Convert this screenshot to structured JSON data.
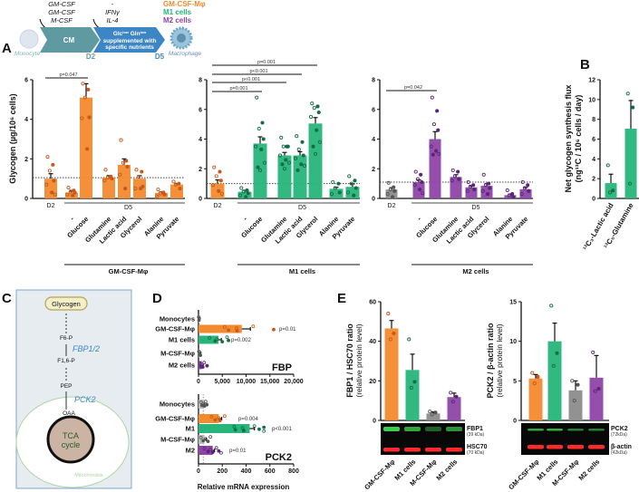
{
  "panels": {
    "a": "A",
    "b": "B",
    "c": "C",
    "d": "D",
    "e": "E"
  },
  "colors": {
    "gm": "#f28a2e",
    "m1": "#26b57a",
    "m2": "#8e44a6",
    "mcsf": "#8c8c8c",
    "gm_pt": "#c9581a",
    "m1_pt": "#166c46",
    "m2_pt": "#5a2677",
    "mcsf_pt": "#555555"
  },
  "schematic": {
    "cytokines_left": [
      "GM-CSF",
      "GM-CSF",
      "M-CSF"
    ],
    "cytokines_right": [
      "-",
      "IFNγ",
      "IL-4"
    ],
    "legend": [
      "GM-CSF-Mφ",
      "M1 cells",
      "M2 cells"
    ],
    "monocyte": "Monocyte",
    "macrophage": "Macrophage",
    "cm": "CM",
    "medium_line1": "Glc",
    "medium_sup1": "low",
    "medium_mid": " Gln",
    "medium_sup2": "low",
    "medium_line2": "supplemented with",
    "medium_line3": "specific nutrients",
    "d2": "D2",
    "d5": "D5"
  },
  "pathway": {
    "glycogen": "Glycogen",
    "f6p": "F6-P",
    "enzyme1": "FBP1/2",
    "f16p": "F1,6-P",
    "pep": "PEP",
    "enzyme2": "PCK2",
    "oaa": "OAA",
    "tca1": "TCA",
    "tca2": "cycle",
    "mito": "Mitochondria"
  },
  "chart_data": [
    {
      "type": "bar",
      "title": "",
      "ylabel": "Glycogen (µg/10⁶ cells)",
      "ylim": [
        0,
        6
      ],
      "yticks": [
        "0",
        "2",
        "4",
        "6"
      ],
      "categories": [
        "D2",
        "-",
        "Glucose",
        "Glutamine",
        "Lactic acid",
        "Glycerol",
        "Alanine",
        "Pyruvate"
      ],
      "day_labels": [
        "D2",
        "D5"
      ],
      "group_label": "GM-CSF-Mφ",
      "values": [
        1.0,
        0.3,
        5.1,
        1.05,
        1.7,
        1.0,
        0.28,
        0.7
      ],
      "errors": [
        0.25,
        0.07,
        0.7,
        0.1,
        0.3,
        0.15,
        0.05,
        0.05
      ],
      "series_color": [
        "gm",
        "gm",
        "gm",
        "gm",
        "gm",
        "gm",
        "gm",
        "gm"
      ],
      "points": [
        [
          2.1,
          1.7,
          1.4,
          0.9,
          0.7,
          0.3,
          0.2
        ],
        [
          0.55,
          0.4,
          0.35,
          0.3,
          0.2,
          0.15
        ],
        [
          5.8,
          5.5,
          5.1,
          4.1,
          4.05,
          2.5
        ],
        [
          1.45,
          1.1,
          1.05,
          1.0,
          0.9
        ],
        [
          2.95,
          1.9,
          1.8,
          1.6,
          1.2,
          0.5
        ],
        [
          1.45,
          1.35,
          1.1,
          0.6,
          0.5,
          0.5
        ],
        [
          0.45,
          0.3,
          0.25,
          0.2,
          0.1
        ],
        [
          0.85,
          0.75,
          0.7,
          0.5
        ]
      ],
      "reference_line": 1.05,
      "significance": [
        {
          "from": 0,
          "to": 2,
          "label": "p=0.047"
        }
      ]
    },
    {
      "type": "bar",
      "title": "",
      "ylim": [
        0,
        8
      ],
      "yticks": [
        "0",
        "2",
        "4",
        "6",
        "8"
      ],
      "categories": [
        "D2",
        "-",
        "Glucose",
        "Glutamine",
        "Lactic acid",
        "Glycerol",
        "Alanine",
        "Pyruvate"
      ],
      "day_labels": [
        "D2",
        "D5"
      ],
      "group_label": "M1 cells",
      "values": [
        1.0,
        0.45,
        3.7,
        2.9,
        2.9,
        5.05,
        0.65,
        0.78
      ],
      "errors": [
        0.25,
        0.1,
        0.45,
        0.2,
        0.25,
        0.4,
        0.1,
        0.2
      ],
      "series_color": [
        "gm",
        "m1",
        "m1",
        "m1",
        "m1",
        "m1",
        "m1",
        "m1"
      ],
      "points": [
        [
          2.1,
          1.8,
          1.5,
          1.2,
          0.9,
          0.5,
          0.3
        ],
        [
          0.7,
          0.55,
          0.45,
          0.35,
          0.2,
          0.1
        ],
        [
          6.8,
          5.1,
          4.7,
          4.0,
          3.5,
          3.3,
          2.4,
          2.1,
          1.9
        ],
        [
          4.1,
          3.5,
          3.5,
          3.5,
          2.9,
          2.6,
          2.4,
          2.3,
          2.0
        ],
        [
          4.2,
          3.8,
          3.3,
          2.9,
          2.7,
          2.3,
          2.2,
          1.9
        ],
        [
          6.4,
          6.2,
          6.1,
          5.8,
          5.5,
          4.6,
          3.8,
          3.5,
          3.0
        ],
        [
          1.1,
          1.0,
          0.7,
          0.4,
          0.3
        ],
        [
          1.5,
          1.2,
          1.0,
          0.7,
          0.4,
          0.2
        ]
      ],
      "reference_line": 1.0,
      "significance": [
        {
          "from": 0,
          "to": 5,
          "label": "p=0.001"
        },
        {
          "from": 0,
          "to": 4,
          "label": "p<0.001"
        },
        {
          "from": 0,
          "to": 3,
          "label": "p<0.001"
        },
        {
          "from": 0,
          "to": 2,
          "label": "p=0.001"
        }
      ]
    },
    {
      "type": "bar",
      "title": "",
      "ylim": [
        0,
        8
      ],
      "yticks": [
        "0",
        "2",
        "4",
        "6",
        "8"
      ],
      "categories": [
        "D2",
        "-",
        "Glucose",
        "Glutamine",
        "Lactic acid",
        "Glycerol",
        "Alanine",
        "Pyruvate"
      ],
      "day_labels": [
        "D2",
        "D5"
      ],
      "group_label": "M2 cells",
      "values": [
        0.6,
        1.1,
        4.0,
        1.45,
        0.75,
        0.85,
        0.22,
        0.62
      ],
      "errors": [
        0.12,
        0.15,
        0.5,
        0.15,
        0.1,
        0.15,
        0.08,
        0.12
      ],
      "series_color": [
        "mcsf",
        "m2",
        "m2",
        "m2",
        "m2",
        "m2",
        "m2",
        "m2"
      ],
      "points": [
        [
          1.05,
          0.75,
          0.6,
          0.5,
          0.3,
          0.1
        ],
        [
          1.8,
          1.6,
          1.3,
          1.1,
          0.9,
          0.6,
          0.35
        ],
        [
          6.8,
          5.9,
          5.0,
          4.6,
          3.5,
          3.2,
          3.0,
          2.95
        ],
        [
          1.9,
          1.8,
          1.5,
          1.3,
          1.2
        ],
        [
          1.1,
          0.9,
          0.8,
          0.6,
          0.5
        ],
        [
          1.6,
          1.0,
          0.9,
          0.7,
          0.5,
          0.3
        ],
        [
          0.55,
          0.3,
          0.2,
          0.1
        ],
        [
          1.1,
          0.9,
          0.7,
          0.5,
          0.3
        ]
      ],
      "reference_line": 1.1,
      "significance": [
        {
          "from": 0,
          "to": 2,
          "label": "p=0.042"
        }
      ]
    },
    {
      "type": "bar",
      "title": "",
      "ylabel": "Net glycogen synthesis flux",
      "ylabel2": "(ng¹³C / 10⁶ cells / day)",
      "ylim": [
        0,
        12
      ],
      "yticks": [
        "0",
        "2",
        "4",
        "6",
        "8",
        "10",
        "12"
      ],
      "categories": [
        "¹³C₃-Lactic acid",
        "¹³C₅-Glutamine"
      ],
      "values": [
        1.55,
        7.05
      ],
      "errors": [
        0.9,
        2.85
      ],
      "series_color": [
        "m1",
        "m1"
      ],
      "points": [
        [
          3.35,
          0.8,
          0.6
        ],
        [
          10.6,
          9.2,
          1.5
        ]
      ]
    },
    {
      "type": "bar",
      "orientation": "horizontal",
      "title": "FBP",
      "xlim": [
        0,
        20000
      ],
      "xticks": [
        "0",
        "5,000",
        "10,000",
        "15,000",
        "20,000"
      ],
      "categories": [
        "Monocytes",
        "GM-CSF-Mφ",
        "M1 cells",
        "M-CSF-Mφ",
        "M2 cells"
      ],
      "values": [
        100,
        9100,
        4200,
        250,
        700
      ],
      "errors": [
        50,
        1800,
        600,
        150,
        300
      ],
      "series_color": [
        "mcsf",
        "gm",
        "m1",
        "mcsf",
        "m2"
      ],
      "points": [
        [
          50,
          100,
          150
        ],
        [
          5500,
          6300,
          8000,
          8100,
          11500,
          15800
        ],
        [
          2300,
          3500,
          3900,
          5000,
          6000,
          6300
        ],
        [
          100,
          200,
          300,
          400
        ],
        [
          300,
          500,
          700,
          900,
          1200,
          1800
        ]
      ],
      "pvalues": [
        "",
        "p=0.01",
        "p=0.002",
        "",
        ""
      ]
    },
    {
      "type": "bar",
      "orientation": "horizontal",
      "title": "PCK2",
      "xlim": [
        0,
        800
      ],
      "xticks": [
        "0",
        "200",
        "400",
        "600",
        "800"
      ],
      "xlabel": "Relative mRNA expression",
      "categories": [
        "Monocytes",
        "GM-CSF-Mφ",
        "M1",
        "M-CSF-Mφ",
        "M2"
      ],
      "values": [
        40,
        170,
        430,
        50,
        120
      ],
      "errors": [
        10,
        25,
        40,
        15,
        15
      ],
      "series_color": [
        "mcsf",
        "gm",
        "m1",
        "mcsf",
        "m2"
      ],
      "points": [
        [
          20,
          30,
          40,
          50,
          60,
          70
        ],
        [
          110,
          140,
          170,
          180,
          220
        ],
        [
          300,
          310,
          370,
          380,
          470,
          510,
          550,
          550
        ],
        [
          20,
          40,
          60,
          80,
          100
        ],
        [
          50,
          80,
          100,
          120,
          150,
          170,
          190
        ]
      ],
      "pvalues": [
        "",
        "p=0.004",
        "p<0.001",
        "",
        "p=0.01"
      ],
      "reference_line": 40
    },
    {
      "type": "bar",
      "title": "",
      "ylabel": "FBP1 / HSC70 ratio",
      "ylabel2": "(relative protein level)",
      "ylim": [
        0,
        60
      ],
      "yticks": [
        "0",
        "20",
        "40",
        "60"
      ],
      "categories": [
        "GM-CSF-Mφ",
        "M1 cells",
        "M-CSF-Mφ",
        "M2 cells"
      ],
      "values": [
        46.5,
        25.5,
        3.5,
        11.8
      ],
      "errors": [
        4,
        8,
        0.8,
        2
      ],
      "series_color": [
        "gm",
        "m1",
        "mcsf",
        "m2"
      ],
      "points": [
        [
          54,
          44,
          41
        ],
        [
          41,
          19.5,
          16.5
        ],
        [
          4.5,
          4,
          3
        ],
        [
          14,
          12,
          9.5
        ]
      ],
      "blot": {
        "band1": "FBP1",
        "band1_kda": "(39 kDa)",
        "band2": "HSC70",
        "band2_kda": "(70 kDa)"
      }
    },
    {
      "type": "bar",
      "title": "",
      "ylabel": "PCK2 / β-actin ratio",
      "ylabel2": "(relative protein level)",
      "ylim": [
        0,
        15
      ],
      "yticks": [
        "0",
        "5",
        "10",
        "15"
      ],
      "categories": [
        "GM-CSF-Mφ",
        "M1 cells",
        "M-CSF-Mφ",
        "M2 cells"
      ],
      "values": [
        5.3,
        10.0,
        3.8,
        5.4
      ],
      "errors": [
        0.5,
        2.3,
        1.2,
        2.8
      ],
      "series_color": [
        "gm",
        "m1",
        "mcsf",
        "m2"
      ],
      "points": [
        [
          6.0,
          5.5,
          4.7
        ],
        [
          14.5,
          8.5,
          6.9
        ],
        [
          5.0,
          4.5,
          2.5
        ],
        [
          8.6,
          4.0,
          3.7
        ]
      ],
      "blot": {
        "band1": "PCK2",
        "band1_kda": "(72kDa)",
        "band2": "β-actin",
        "band2_kda": "(42kDa)"
      }
    }
  ]
}
